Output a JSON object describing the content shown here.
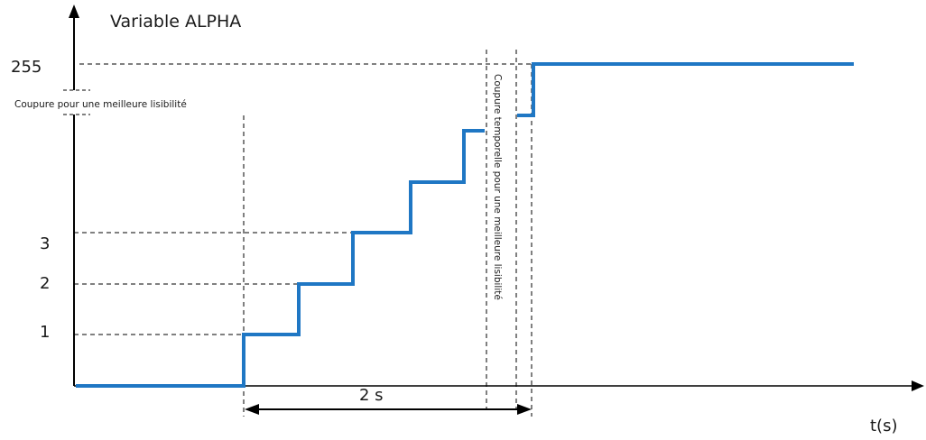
{
  "title": "Variable ALPHA",
  "x_axis_label": "t(s)",
  "y_tick_labels": {
    "top": "255",
    "v3": "3",
    "v2": "2",
    "v1": "1"
  },
  "y_axis_break_note": "Coupure pour une meilleure lisibilité",
  "time_break_note": "Coupure temporelle  pour une meilleure  lisibilité",
  "duration_label": "2 s",
  "colors": {
    "signal": "#1f77c4",
    "axis": "#000000",
    "guide": "#000000"
  }
}
